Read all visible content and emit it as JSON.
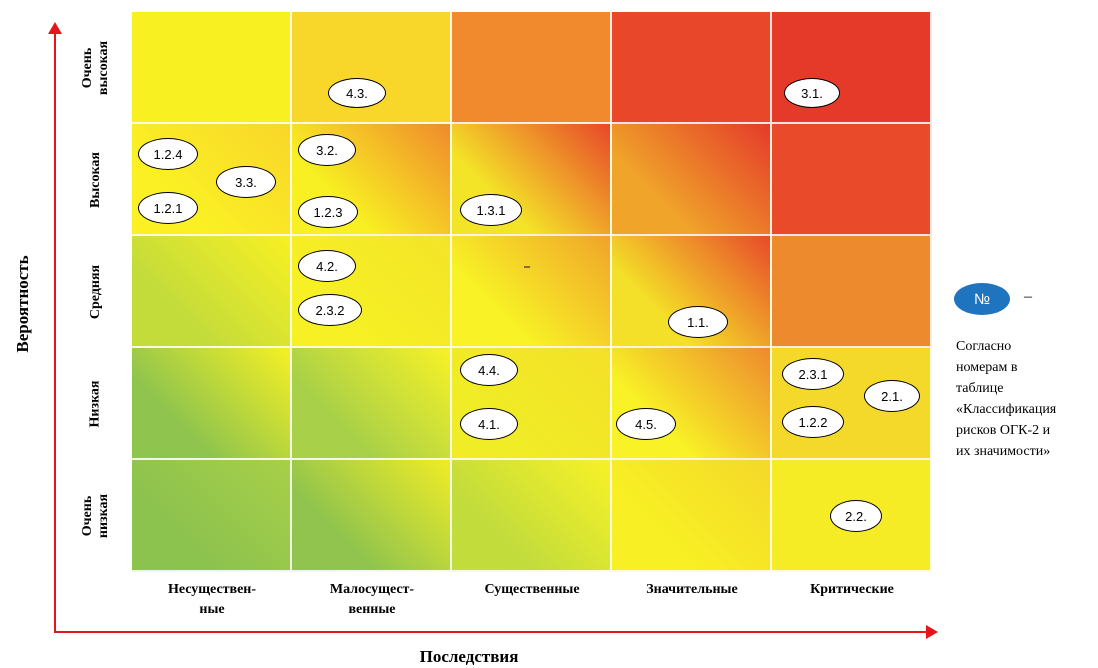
{
  "axes": {
    "y_title": "Вероятность",
    "x_title": "Последствия"
  },
  "rows": [
    "Очень\nвысокая",
    "Высокая",
    "Средняя",
    "Низкая",
    "Очень\nнизкая"
  ],
  "columns": [
    "Несуществен-\nные",
    "Малосущест-\nвенные",
    "Существенные",
    "Значительные",
    "Критические"
  ],
  "risks": [
    {
      "label": "4.3.",
      "row": 0,
      "col": 1
    },
    {
      "label": "3.1.",
      "row": 0,
      "col": 4
    },
    {
      "label": "1.2.4",
      "row": 1,
      "col": 0
    },
    {
      "label": "3.3.",
      "row": 1,
      "col": 0
    },
    {
      "label": "1.2.1",
      "row": 1,
      "col": 0
    },
    {
      "label": "3.2.",
      "row": 1,
      "col": 1
    },
    {
      "label": "1.2.3",
      "row": 1,
      "col": 1
    },
    {
      "label": "1.3.1",
      "row": 1,
      "col": 2
    },
    {
      "label": "4.2.",
      "row": 2,
      "col": 1
    },
    {
      "label": "2.3.2",
      "row": 2,
      "col": 1
    },
    {
      "label": "1.1.",
      "row": 2,
      "col": 3
    },
    {
      "label": "4.4.",
      "row": 3,
      "col": 2
    },
    {
      "label": "4.1.",
      "row": 3,
      "col": 2
    },
    {
      "label": "4.5.",
      "row": 3,
      "col": 3
    },
    {
      "label": "2.3.1",
      "row": 3,
      "col": 4
    },
    {
      "label": "2.1.",
      "row": 3,
      "col": 4
    },
    {
      "label": "1.2.2",
      "row": 3,
      "col": 4
    },
    {
      "label": "2.2.",
      "row": 4,
      "col": 4
    }
  ],
  "cell_colors": [
    [
      "#f8f020",
      "#f9d62a",
      "#f08a2c",
      "#e8472a",
      "#e53a2a"
    ],
    [
      "#faf024",
      "#f8f022",
      "#f4e428",
      "#f0a42a",
      "#e84a2a"
    ],
    [
      "#c4dc3a",
      "#f6f024",
      "#f8f226",
      "#f4e028",
      "#ee8a2e"
    ],
    [
      "#8fc44e",
      "#a8d048",
      "#f0ec26",
      "#f8f226",
      "#f4d82a"
    ],
    [
      "#8cc24e",
      "#90c44e",
      "#c2dc3c",
      "#f8f024",
      "#f6ec26"
    ]
  ],
  "legend": {
    "badge": "№",
    "dash": "–",
    "text": "Согласно\nномерам в\nтаблице\n«Классификация\nрисков ОГК-2 и\nих значимости»"
  }
}
